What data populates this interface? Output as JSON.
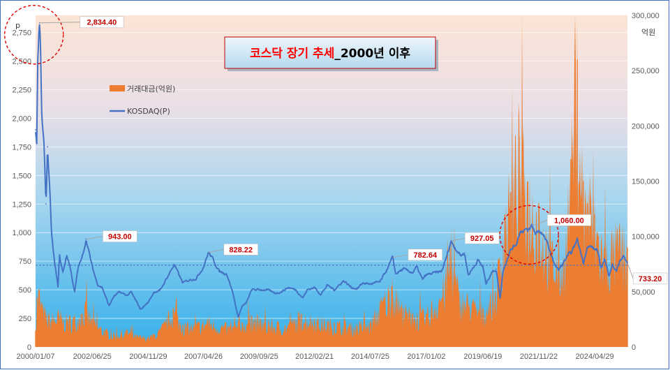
{
  "chart_data": {
    "type": "line",
    "title_red": "코스닥 장기 추세",
    "title_black": "_2000년 이후",
    "left_unit": "p",
    "right_unit": "억원",
    "x_ticks": [
      "2000/01/07",
      "2002/06/25",
      "2004/11/29",
      "2007/04/26",
      "2009/09/25",
      "2012/02/21",
      "2014/07/25",
      "2017/01/02",
      "2019/06/19",
      "2021/11/22",
      "2024/04/29"
    ],
    "x_range": [
      "2000/01/07",
      "2025/09/30"
    ],
    "left_ylim": [
      0,
      2900
    ],
    "left_ticks": [
      "0",
      "250",
      "500",
      "750",
      "1,000",
      "1,250",
      "1,500",
      "1,750",
      "2,000",
      "2,250",
      "2,500",
      "2,750"
    ],
    "left_tick_values": [
      0,
      250,
      500,
      750,
      1000,
      1250,
      1500,
      1750,
      2000,
      2250,
      2500,
      2750
    ],
    "right_ylim": [
      0,
      300000
    ],
    "right_ticks": [
      "0",
      "50,000",
      "100,000",
      "150,000",
      "200,000",
      "250,000",
      "300,000"
    ],
    "right_tick_values": [
      0,
      50000,
      100000,
      150000,
      200000,
      250000,
      300000
    ],
    "series": [
      {
        "name": "거래대금(억원)",
        "kind": "area",
        "axis": "right",
        "color": "#ed7d31",
        "points": [
          [
            "2000-01-07",
            15000
          ],
          [
            "2000-02-01",
            45000
          ],
          [
            "2000-03-01",
            52000
          ],
          [
            "2000-05-01",
            35000
          ],
          [
            "2000-08-01",
            28000
          ],
          [
            "2001-01-01",
            30000
          ],
          [
            "2001-06-01",
            25000
          ],
          [
            "2002-01-01",
            30000
          ],
          [
            "2002-03-01",
            38000
          ],
          [
            "2002-06-25",
            25000
          ],
          [
            "2003-01-01",
            15000
          ],
          [
            "2003-06-01",
            12000
          ],
          [
            "2004-01-01",
            15000
          ],
          [
            "2004-06-01",
            10000
          ],
          [
            "2004-11-29",
            9000
          ],
          [
            "2005-06-01",
            15000
          ],
          [
            "2006-01-01",
            35000
          ],
          [
            "2006-06-01",
            20000
          ],
          [
            "2007-01-01",
            20000
          ],
          [
            "2007-07-01",
            25000
          ],
          [
            "2008-06-01",
            18000
          ],
          [
            "2009-01-01",
            22000
          ],
          [
            "2009-06-01",
            28000
          ],
          [
            "2010-01-01",
            22000
          ],
          [
            "2011-01-01",
            20000
          ],
          [
            "2011-08-01",
            30000
          ],
          [
            "2012-02-21",
            25000
          ],
          [
            "2013-01-01",
            22000
          ],
          [
            "2014-01-01",
            20000
          ],
          [
            "2014-07-25",
            22000
          ],
          [
            "2015-03-01",
            45000
          ],
          [
            "2015-07-01",
            55000
          ],
          [
            "2016-01-01",
            35000
          ],
          [
            "2016-06-01",
            30000
          ],
          [
            "2017-01-02",
            30000
          ],
          [
            "2017-11-01",
            60000
          ],
          [
            "2018-01-15",
            90000
          ],
          [
            "2018-06-01",
            50000
          ],
          [
            "2019-01-01",
            40000
          ],
          [
            "2019-06-19",
            35000
          ],
          [
            "2020-01-01",
            50000
          ],
          [
            "2020-06-01",
            120000
          ],
          [
            "2020-09-01",
            140000
          ],
          [
            "2021-01-15",
            190000
          ],
          [
            "2021-06-01",
            150000
          ],
          [
            "2021-11-22",
            130000
          ],
          [
            "2022-06-01",
            90000
          ],
          [
            "2023-01-01",
            80000
          ],
          [
            "2023-04-15",
            170000
          ],
          [
            "2023-07-27",
            260000
          ],
          [
            "2023-11-01",
            150000
          ],
          [
            "2024-01-01",
            130000
          ],
          [
            "2024-04-29",
            120000
          ],
          [
            "2024-10-01",
            90000
          ],
          [
            "2025-06-01",
            100000
          ],
          [
            "2025-09-30",
            90000
          ]
        ]
      },
      {
        "name": "KOSDAQ(P)",
        "kind": "line",
        "axis": "left",
        "color": "#4472c4",
        "points": [
          [
            "2000-01-07",
            1900
          ],
          [
            "2000-01-25",
            1780
          ],
          [
            "2000-02-10",
            2500
          ],
          [
            "2000-03-10",
            2834.4
          ],
          [
            "2000-03-25",
            2600
          ],
          [
            "2000-04-15",
            2000
          ],
          [
            "2000-05-25",
            1700
          ],
          [
            "2000-06-20",
            1250
          ],
          [
            "2000-07-15",
            1750
          ],
          [
            "2000-08-20",
            1350
          ],
          [
            "2000-09-15",
            1000
          ],
          [
            "2000-10-20",
            800
          ],
          [
            "2000-12-27",
            525
          ],
          [
            "2001-01-20",
            800
          ],
          [
            "2001-03-15",
            650
          ],
          [
            "2001-05-15",
            800
          ],
          [
            "2001-07-01",
            720
          ],
          [
            "2001-09-18",
            480
          ],
          [
            "2001-11-15",
            700
          ],
          [
            "2002-01-15",
            780
          ],
          [
            "2002-03-20",
            943
          ],
          [
            "2002-05-15",
            800
          ],
          [
            "2002-06-25",
            700
          ],
          [
            "2002-09-15",
            550
          ],
          [
            "2002-12-01",
            520
          ],
          [
            "2003-03-17",
            360
          ],
          [
            "2003-06-01",
            440
          ],
          [
            "2003-09-01",
            480
          ],
          [
            "2004-01-01",
            450
          ],
          [
            "2004-03-01",
            480
          ],
          [
            "2004-08-01",
            330
          ],
          [
            "2004-11-29",
            390
          ],
          [
            "2005-03-01",
            480
          ],
          [
            "2005-06-01",
            490
          ],
          [
            "2006-01-15",
            720
          ],
          [
            "2006-06-01",
            560
          ],
          [
            "2006-10-01",
            590
          ],
          [
            "2007-01-01",
            600
          ],
          [
            "2007-04-26",
            700
          ],
          [
            "2007-07-15",
            828.22
          ],
          [
            "2007-10-01",
            760
          ],
          [
            "2008-01-01",
            660
          ],
          [
            "2008-05-01",
            640
          ],
          [
            "2008-08-01",
            480
          ],
          [
            "2008-10-27",
            261
          ],
          [
            "2009-01-01",
            360
          ],
          [
            "2009-03-01",
            380
          ],
          [
            "2009-06-01",
            500
          ],
          [
            "2009-09-25",
            500
          ],
          [
            "2010-02-01",
            500
          ],
          [
            "2010-06-01",
            470
          ],
          [
            "2010-09-01",
            480
          ],
          [
            "2011-01-01",
            520
          ],
          [
            "2011-05-01",
            500
          ],
          [
            "2011-08-20",
            430
          ],
          [
            "2011-11-01",
            500
          ],
          [
            "2012-02-21",
            520
          ],
          [
            "2012-06-01",
            460
          ],
          [
            "2012-09-15",
            540
          ],
          [
            "2013-01-01",
            500
          ],
          [
            "2013-05-30",
            580
          ],
          [
            "2013-10-01",
            520
          ],
          [
            "2014-01-01",
            510
          ],
          [
            "2014-04-01",
            560
          ],
          [
            "2014-07-25",
            550
          ],
          [
            "2014-10-15",
            560
          ],
          [
            "2015-01-01",
            570
          ],
          [
            "2015-04-01",
            660
          ],
          [
            "2015-07-20",
            782.64
          ],
          [
            "2015-09-01",
            640
          ],
          [
            "2016-01-01",
            680
          ],
          [
            "2016-06-01",
            650
          ],
          [
            "2016-08-01",
            700
          ],
          [
            "2016-11-01",
            590
          ],
          [
            "2017-01-02",
            630
          ],
          [
            "2017-06-01",
            650
          ],
          [
            "2017-09-01",
            660
          ],
          [
            "2017-11-15",
            780
          ],
          [
            "2018-01-29",
            927.05
          ],
          [
            "2018-04-01",
            870
          ],
          [
            "2018-07-01",
            800
          ],
          [
            "2018-09-01",
            820
          ],
          [
            "2018-10-29",
            630
          ],
          [
            "2019-01-01",
            680
          ],
          [
            "2019-04-01",
            760
          ],
          [
            "2019-06-19",
            700
          ],
          [
            "2019-08-06",
            550
          ],
          [
            "2019-11-01",
            650
          ],
          [
            "2020-01-15",
            680
          ],
          [
            "2020-03-19",
            428
          ],
          [
            "2020-05-01",
            660
          ],
          [
            "2020-07-01",
            760
          ],
          [
            "2020-09-01",
            850
          ],
          [
            "2020-12-01",
            900
          ],
          [
            "2021-01-20",
            1000
          ],
          [
            "2021-04-15",
            1030
          ],
          [
            "2021-06-01",
            1010
          ],
          [
            "2021-08-06",
            1060
          ],
          [
            "2021-10-01",
            990
          ],
          [
            "2021-11-22",
            1020
          ],
          [
            "2022-01-01",
            1000
          ],
          [
            "2022-03-01",
            950
          ],
          [
            "2022-05-01",
            870
          ],
          [
            "2022-07-01",
            760
          ],
          [
            "2022-09-30",
            670
          ],
          [
            "2022-12-01",
            720
          ],
          [
            "2023-03-01",
            800
          ],
          [
            "2023-05-01",
            830
          ],
          [
            "2023-07-26",
            940
          ],
          [
            "2023-10-31",
            740
          ],
          [
            "2023-12-28",
            866
          ],
          [
            "2024-03-01",
            880
          ],
          [
            "2024-04-29",
            850
          ],
          [
            "2024-06-01",
            860
          ],
          [
            "2024-08-05",
            690
          ],
          [
            "2024-10-01",
            770
          ],
          [
            "2024-12-09",
            630
          ],
          [
            "2025-02-01",
            720
          ],
          [
            "2025-04-09",
            660
          ],
          [
            "2025-06-01",
            760
          ],
          [
            "2025-08-01",
            790
          ],
          [
            "2025-09-30",
            733.2
          ]
        ]
      }
    ],
    "reference_line": {
      "axis": "left",
      "value": 715,
      "style": "dashed"
    },
    "annotations": [
      {
        "label": "2,834.40",
        "date": "2000-03-10",
        "value": 2834.4
      },
      {
        "label": "943.00",
        "date": "2002-03-20",
        "value": 943
      },
      {
        "label": "828.22",
        "date": "2007-07-15",
        "value": 828.22
      },
      {
        "label": "782.64",
        "date": "2015-07-20",
        "value": 782.64
      },
      {
        "label": "927.05",
        "date": "2018-01-29",
        "value": 927.05
      },
      {
        "label": "1,060.00",
        "date": "2021-08-06",
        "value": 1060
      },
      {
        "label": "733.20",
        "date": "2025-09-30",
        "value": 733.2
      }
    ],
    "highlight_circles": [
      {
        "date": "2000-03-10",
        "value": 2834.4
      },
      {
        "date": "2021-08-06",
        "value": 1060
      }
    ],
    "legend_position": "top-left",
    "grid": true
  }
}
